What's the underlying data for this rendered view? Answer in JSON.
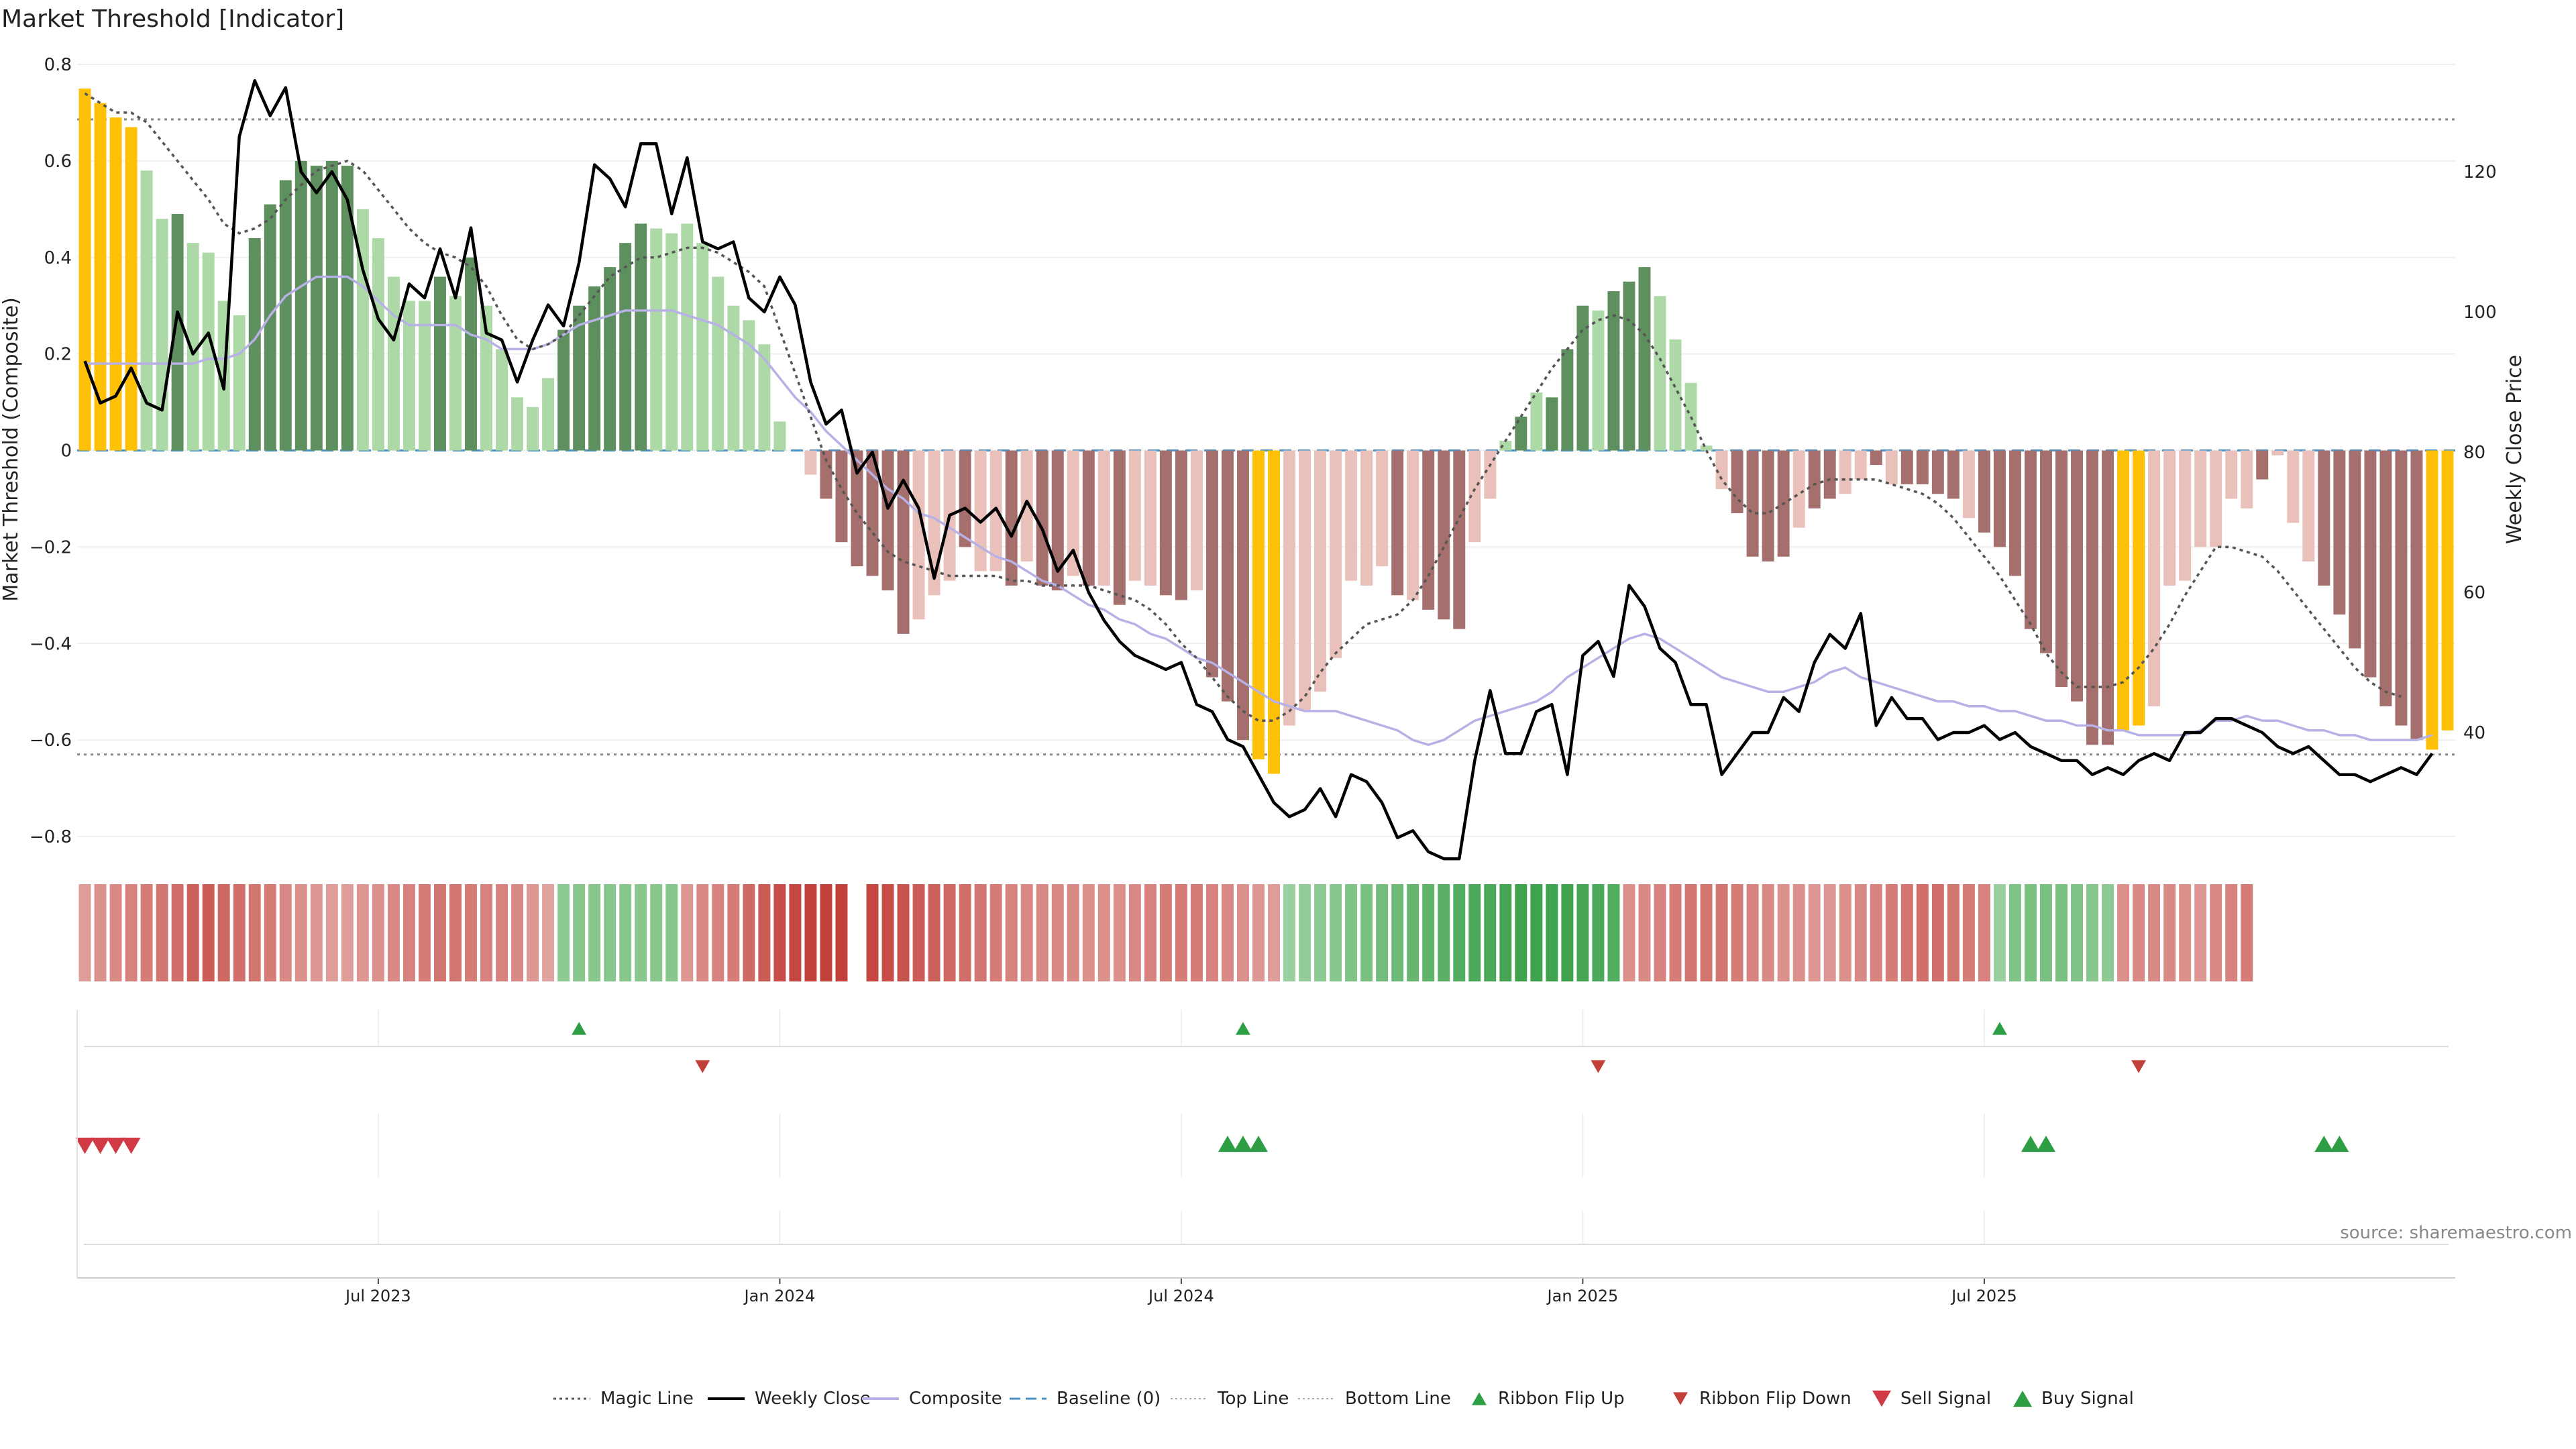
{
  "title": "Market Threshold [Indicator]",
  "source": "source: sharemaestro.com",
  "colors": {
    "gold": "#FFC107",
    "strong_pos": "#5E8F5E",
    "weak_pos": "#ADD9A7",
    "strong_neg": "#A46F6C",
    "weak_neg": "#EAC0BA",
    "weekly_close": "#000000",
    "composite": "#B8B1E6",
    "magic_line": "#555555",
    "baseline": "#4A90C2",
    "threshold_line": "#8A8A8A",
    "ribbon_green": "#3FA34D",
    "ribbon_red": "#C2403A",
    "signal_green": "#2E9E44",
    "signal_red": "#D03A45"
  },
  "icons": {
    "ribbon_flip_up": "triangle-up-icon",
    "ribbon_flip_down": "triangle-down-icon",
    "sell_signal": "triangle-down-icon",
    "buy_signal": "triangle-up-icon"
  },
  "chart_data": {
    "type": "bar",
    "title": "Market Threshold [Indicator]",
    "ylabel": "Market Threshold (Composite)",
    "y2label": "Weekly Close Price",
    "ylim": [
      -0.8,
      0.8
    ],
    "y2lim": [
      30,
      140
    ],
    "yticks": [
      "0.8",
      "0.6",
      "0.4",
      "0.2",
      "0",
      "−0.2",
      "−0.4",
      "−0.6",
      "−0.8"
    ],
    "y2ticks": [
      "120",
      "100",
      "80",
      "60",
      "40"
    ],
    "xticks": [
      "Jul 2023",
      "Jan 2024",
      "Jul 2024",
      "Jan 2025",
      "Jul 2025"
    ],
    "grid": true,
    "top_line": 0.686,
    "bottom_line": -0.63,
    "baseline": 0,
    "bars": [
      0.75,
      0.72,
      0.69,
      0.67,
      0.58,
      0.48,
      0.49,
      0.43,
      0.41,
      0.31,
      0.28,
      0.44,
      0.51,
      0.56,
      0.6,
      0.59,
      0.6,
      0.59,
      0.5,
      0.44,
      0.36,
      0.31,
      0.31,
      0.36,
      0.32,
      0.4,
      0.3,
      0.21,
      0.11,
      0.09,
      0.15,
      0.25,
      0.3,
      0.34,
      0.38,
      0.43,
      0.47,
      0.46,
      0.45,
      0.47,
      0.43,
      0.36,
      0.3,
      0.27,
      0.22,
      0.06,
      0.0,
      -0.05,
      -0.1,
      -0.19,
      -0.24,
      -0.26,
      -0.29,
      -0.38,
      -0.35,
      -0.3,
      -0.27,
      -0.2,
      -0.25,
      -0.25,
      -0.28,
      -0.23,
      -0.28,
      -0.29,
      -0.26,
      -0.28,
      -0.28,
      -0.32,
      -0.27,
      -0.28,
      -0.3,
      -0.31,
      -0.29,
      -0.47,
      -0.52,
      -0.6,
      -0.64,
      -0.67,
      -0.57,
      -0.54,
      -0.5,
      -0.43,
      -0.27,
      -0.28,
      -0.24,
      -0.3,
      -0.31,
      -0.33,
      -0.35,
      -0.37,
      -0.19,
      -0.1,
      0.02,
      0.07,
      0.12,
      0.11,
      0.21,
      0.3,
      0.29,
      0.33,
      0.35,
      0.38,
      0.32,
      0.23,
      0.14,
      0.01,
      -0.08,
      -0.13,
      -0.22,
      -0.23,
      -0.22,
      -0.16,
      -0.12,
      -0.1,
      -0.09,
      -0.06,
      -0.03,
      -0.07,
      -0.07,
      -0.07,
      -0.09,
      -0.1,
      -0.14,
      -0.17,
      -0.2,
      -0.26,
      -0.37,
      -0.42,
      -0.49,
      -0.52,
      -0.61,
      -0.61,
      -0.58,
      -0.57,
      -0.53,
      -0.28,
      -0.27,
      -0.2,
      -0.2,
      -0.1,
      -0.12,
      -0.06,
      -0.01,
      -0.15,
      -0.23,
      -0.28,
      -0.34,
      -0.41,
      -0.47,
      -0.53,
      -0.57,
      -0.6,
      -0.62,
      -0.58
    ],
    "gold_flags": [
      1,
      1,
      1,
      1,
      0,
      0,
      0,
      0,
      0,
      0,
      0,
      0,
      0,
      0,
      0,
      0,
      0,
      0,
      0,
      0,
      0,
      0,
      0,
      0,
      0,
      0,
      0,
      0,
      0,
      0,
      0,
      0,
      0,
      0,
      0,
      0,
      0,
      0,
      0,
      0,
      0,
      0,
      0,
      0,
      0,
      0,
      0,
      0,
      0,
      0,
      0,
      0,
      0,
      0,
      0,
      0,
      0,
      0,
      0,
      0,
      0,
      0,
      0,
      0,
      0,
      0,
      0,
      0,
      0,
      0,
      0,
      0,
      0,
      0,
      0,
      0,
      1,
      1,
      0,
      0,
      0,
      0,
      0,
      0,
      0,
      0,
      0,
      0,
      0,
      0,
      0,
      0,
      0,
      0,
      0,
      0,
      0,
      0,
      0,
      0,
      0,
      0,
      0,
      0,
      0,
      0,
      0,
      0,
      0,
      0,
      0,
      0,
      0,
      0,
      0,
      0,
      0,
      0,
      0,
      0,
      0,
      0,
      0,
      0,
      0,
      0,
      0,
      0,
      0,
      0,
      0,
      0,
      1,
      1,
      0,
      0,
      0,
      0,
      0,
      0,
      0,
      0,
      0,
      0,
      0,
      0,
      0,
      0,
      0,
      0,
      0,
      0,
      1,
      1,
      0
    ],
    "strong_flags": [
      0,
      0,
      0,
      0,
      0,
      0,
      1,
      0,
      0,
      0,
      0,
      1,
      1,
      1,
      1,
      1,
      1,
      1,
      0,
      0,
      0,
      0,
      0,
      1,
      0,
      1,
      0,
      0,
      0,
      0,
      0,
      1,
      1,
      1,
      1,
      1,
      1,
      0,
      0,
      0,
      0,
      0,
      0,
      0,
      0,
      0,
      0,
      0,
      1,
      1,
      1,
      1,
      1,
      1,
      0,
      0,
      0,
      1,
      0,
      0,
      1,
      0,
      1,
      1,
      0,
      1,
      0,
      1,
      0,
      0,
      1,
      1,
      0,
      1,
      1,
      1,
      0,
      0,
      0,
      0,
      0,
      0,
      0,
      0,
      0,
      1,
      0,
      1,
      1,
      1,
      0,
      0,
      0,
      1,
      0,
      1,
      1,
      1,
      0,
      1,
      1,
      1,
      0,
      0,
      0,
      0,
      0,
      1,
      1,
      1,
      1,
      0,
      1,
      1,
      0,
      0,
      1,
      0,
      1,
      1,
      1,
      1,
      0,
      1,
      1,
      1,
      1,
      1,
      1,
      1,
      1,
      1,
      1,
      0,
      0,
      0,
      0,
      0,
      0,
      0,
      0,
      1,
      0,
      0,
      0,
      1,
      1,
      1,
      1,
      1,
      1,
      1,
      1,
      1,
      0,
      0
    ],
    "series": [
      {
        "name": "Weekly Close",
        "axis": "right",
        "values": [
          93,
          87,
          88,
          92,
          87,
          86,
          100,
          94,
          97,
          89,
          125,
          133,
          128,
          132,
          120,
          117,
          120,
          116,
          106,
          99,
          96,
          104,
          102,
          109,
          102,
          112,
          97,
          96,
          90,
          96,
          101,
          98,
          107,
          121,
          119,
          115,
          124,
          124,
          114,
          122,
          110,
          109,
          110,
          102,
          100,
          105,
          101,
          90,
          84,
          86,
          77,
          80,
          72,
          76,
          72,
          62,
          71,
          72,
          70,
          72,
          68,
          73,
          69,
          63,
          66,
          60,
          56,
          53,
          51,
          50,
          49,
          50,
          44,
          43,
          39,
          38,
          34,
          30,
          28,
          29,
          32,
          28,
          34,
          33,
          30,
          25,
          26,
          23,
          22,
          22,
          36,
          46,
          37,
          37,
          43,
          44,
          34,
          51,
          53,
          48,
          61,
          58,
          52,
          50,
          44,
          44,
          34,
          37,
          40,
          40,
          45,
          43,
          50,
          54,
          52,
          57,
          41,
          45,
          42,
          42,
          39,
          40,
          40,
          41,
          39,
          40,
          38,
          37,
          36,
          36,
          34,
          35,
          34,
          36,
          37,
          36,
          40,
          40,
          42,
          42,
          41,
          40,
          38,
          37,
          38,
          36,
          34,
          34,
          33,
          34,
          35,
          34,
          37
        ],
        "labels": []
      },
      {
        "name": "Composite",
        "values": [
          0.18,
          0.18,
          0.18,
          0.18,
          0.18,
          0.18,
          0.18,
          0.18,
          0.19,
          0.19,
          0.2,
          0.23,
          0.28,
          0.32,
          0.34,
          0.36,
          0.36,
          0.36,
          0.34,
          0.31,
          0.28,
          0.26,
          0.26,
          0.26,
          0.26,
          0.24,
          0.23,
          0.21,
          0.21,
          0.21,
          0.22,
          0.24,
          0.26,
          0.27,
          0.28,
          0.29,
          0.29,
          0.29,
          0.29,
          0.28,
          0.27,
          0.26,
          0.24,
          0.22,
          0.19,
          0.15,
          0.11,
          0.08,
          0.04,
          0.01,
          -0.02,
          -0.05,
          -0.08,
          -0.1,
          -0.13,
          -0.14,
          -0.16,
          -0.18,
          -0.2,
          -0.22,
          -0.23,
          -0.25,
          -0.27,
          -0.28,
          -0.3,
          -0.32,
          -0.33,
          -0.35,
          -0.36,
          -0.38,
          -0.39,
          -0.41,
          -0.43,
          -0.44,
          -0.46,
          -0.48,
          -0.5,
          -0.52,
          -0.53,
          -0.54,
          -0.54,
          -0.54,
          -0.55,
          -0.56,
          -0.57,
          -0.58,
          -0.6,
          -0.61,
          -0.6,
          -0.58,
          -0.56,
          -0.55,
          -0.54,
          -0.53,
          -0.52,
          -0.5,
          -0.47,
          -0.45,
          -0.43,
          -0.41,
          -0.39,
          -0.38,
          -0.39,
          -0.41,
          -0.43,
          -0.45,
          -0.47,
          -0.48,
          -0.49,
          -0.5,
          -0.5,
          -0.49,
          -0.48,
          -0.46,
          -0.45,
          -0.47,
          -0.48,
          -0.49,
          -0.5,
          -0.51,
          -0.52,
          -0.52,
          -0.53,
          -0.53,
          -0.54,
          -0.54,
          -0.55,
          -0.56,
          -0.56,
          -0.57,
          -0.57,
          -0.58,
          -0.58,
          -0.59,
          -0.59,
          -0.59,
          -0.59,
          -0.58,
          -0.56,
          -0.56,
          -0.55,
          -0.56,
          -0.56,
          -0.57,
          -0.58,
          -0.58,
          -0.59,
          -0.59,
          -0.6,
          -0.6,
          -0.6,
          -0.6,
          -0.59
        ]
      },
      {
        "name": "Magic Line",
        "values": [
          0.74,
          0.72,
          0.7,
          0.7,
          0.68,
          0.64,
          0.6,
          0.56,
          0.52,
          0.47,
          0.45,
          0.46,
          0.48,
          0.52,
          0.55,
          0.58,
          0.59,
          0.6,
          0.58,
          0.54,
          0.5,
          0.46,
          0.43,
          0.41,
          0.4,
          0.38,
          0.34,
          0.28,
          0.23,
          0.21,
          0.22,
          0.24,
          0.28,
          0.32,
          0.36,
          0.38,
          0.4,
          0.4,
          0.41,
          0.42,
          0.42,
          0.41,
          0.39,
          0.37,
          0.34,
          0.25,
          0.16,
          0.07,
          -0.02,
          -0.08,
          -0.13,
          -0.17,
          -0.21,
          -0.23,
          -0.24,
          -0.25,
          -0.26,
          -0.26,
          -0.26,
          -0.26,
          -0.27,
          -0.27,
          -0.28,
          -0.28,
          -0.28,
          -0.28,
          -0.29,
          -0.3,
          -0.31,
          -0.33,
          -0.36,
          -0.4,
          -0.43,
          -0.47,
          -0.51,
          -0.54,
          -0.56,
          -0.56,
          -0.54,
          -0.51,
          -0.46,
          -0.42,
          -0.39,
          -0.36,
          -0.35,
          -0.34,
          -0.31,
          -0.26,
          -0.2,
          -0.14,
          -0.08,
          -0.03,
          0.02,
          0.07,
          0.12,
          0.17,
          0.21,
          0.25,
          0.27,
          0.28,
          0.27,
          0.24,
          0.19,
          0.13,
          0.07,
          0.0,
          -0.06,
          -0.1,
          -0.13,
          -0.13,
          -0.11,
          -0.09,
          -0.07,
          -0.06,
          -0.06,
          -0.06,
          -0.06,
          -0.07,
          -0.08,
          -0.09,
          -0.11,
          -0.14,
          -0.18,
          -0.22,
          -0.26,
          -0.31,
          -0.36,
          -0.42,
          -0.46,
          -0.49,
          -0.49,
          -0.49,
          -0.48,
          -0.45,
          -0.41,
          -0.36,
          -0.3,
          -0.25,
          -0.2,
          -0.2,
          -0.21,
          -0.22,
          -0.25,
          -0.29,
          -0.33,
          -0.37,
          -0.41,
          -0.45,
          -0.48,
          -0.5,
          -0.51
        ]
      }
    ],
    "ribbon": [
      -0.3,
      -0.4,
      -0.45,
      -0.5,
      -0.55,
      -0.6,
      -0.65,
      -0.75,
      -0.8,
      -0.7,
      -0.65,
      -0.6,
      -0.55,
      -0.45,
      -0.4,
      -0.35,
      -0.3,
      -0.3,
      -0.35,
      -0.4,
      -0.45,
      -0.5,
      -0.55,
      -0.6,
      -0.6,
      -0.55,
      -0.5,
      -0.5,
      -0.45,
      -0.35,
      -0.25,
      0.4,
      0.45,
      0.45,
      0.45,
      0.45,
      0.45,
      0.45,
      0.45,
      -0.35,
      -0.45,
      -0.5,
      -0.55,
      -0.7,
      -0.8,
      -0.9,
      -0.95,
      -1.0,
      -1.0,
      -1.0,
      null,
      -0.95,
      -0.9,
      -0.85,
      -0.8,
      -0.75,
      -0.7,
      -0.65,
      -0.6,
      -0.55,
      -0.5,
      -0.45,
      -0.45,
      -0.45,
      -0.45,
      -0.4,
      -0.4,
      -0.4,
      -0.45,
      -0.5,
      -0.55,
      -0.55,
      -0.55,
      -0.5,
      -0.45,
      -0.4,
      -0.35,
      -0.3,
      0.3,
      0.35,
      0.4,
      0.45,
      0.5,
      0.55,
      0.6,
      0.65,
      0.7,
      0.75,
      0.8,
      0.85,
      0.9,
      0.9,
      0.95,
      1.0,
      1.0,
      1.0,
      1.0,
      0.95,
      0.9,
      0.85,
      -0.4,
      -0.45,
      -0.5,
      -0.55,
      -0.6,
      -0.6,
      -0.6,
      -0.55,
      -0.5,
      -0.45,
      -0.4,
      -0.4,
      -0.35,
      -0.35,
      -0.4,
      -0.45,
      -0.5,
      -0.55,
      -0.6,
      -0.65,
      -0.65,
      -0.6,
      -0.55,
      -0.5,
      0.3,
      0.5,
      0.55,
      0.55,
      0.55,
      0.5,
      0.45,
      0.4,
      -0.4,
      -0.45,
      -0.45,
      -0.45,
      -0.4,
      -0.35,
      -0.45,
      -0.5,
      -0.55
    ],
    "ribbon_flip_up": [
      32,
      75,
      124
    ],
    "ribbon_flip_down": [
      40,
      98,
      133
    ],
    "sell_signal": [
      0,
      1,
      2,
      3
    ],
    "buy_signal": [
      74,
      75,
      76,
      126,
      127,
      145,
      146
    ]
  },
  "legend": [
    {
      "label": "Magic Line",
      "style": "dotted-gray"
    },
    {
      "label": "Weekly Close",
      "style": "solid-black"
    },
    {
      "label": "Composite",
      "style": "solid-lavender"
    },
    {
      "label": "Baseline (0)",
      "style": "dashed-blue"
    },
    {
      "label": "Top Line",
      "style": "dotted-lightgray"
    },
    {
      "label": "Bottom Line",
      "style": "dotted-lightgray"
    },
    {
      "label": "Ribbon Flip Up",
      "style": "triangle-up-green"
    },
    {
      "label": "Ribbon Flip Down",
      "style": "triangle-down-red"
    },
    {
      "label": "Sell Signal",
      "style": "triangle-down-red-big"
    },
    {
      "label": "Buy Signal",
      "style": "triangle-up-green-big"
    }
  ]
}
